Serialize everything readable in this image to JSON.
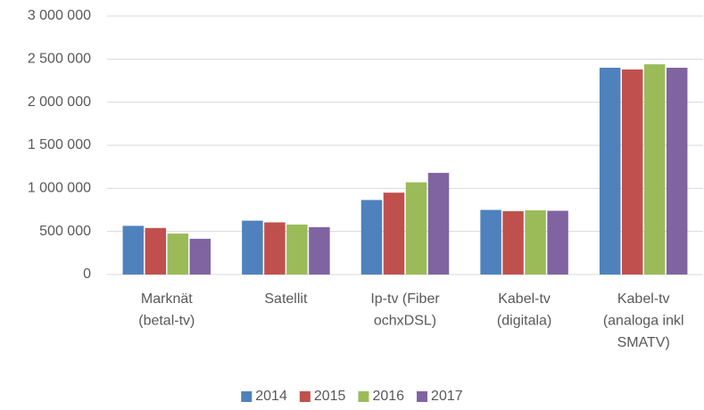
{
  "chart_data": {
    "type": "bar",
    "categories": [
      "Marknät\n(betal-tv)",
      "Satellit",
      "Ip-tv (Fiber\nochxDSL)",
      "Kabel-tv\n(digitala)",
      "Kabel-tv\n(analoga inkl\nSMATV)"
    ],
    "series": [
      {
        "name": "2014",
        "color": "#4f81bd",
        "values": [
          565000,
          625000,
          865000,
          750000,
          2400000
        ]
      },
      {
        "name": "2015",
        "color": "#c0504d",
        "values": [
          540000,
          605000,
          950000,
          735000,
          2380000
        ]
      },
      {
        "name": "2016",
        "color": "#9bbb59",
        "values": [
          475000,
          580000,
          1070000,
          745000,
          2440000
        ]
      },
      {
        "name": "2017",
        "color": "#8064a2",
        "values": [
          415000,
          550000,
          1180000,
          740000,
          2400000
        ]
      }
    ],
    "ylim": [
      0,
      3000000
    ],
    "yticks": [
      0,
      {
        "value": 500000,
        "label": "500 000"
      },
      {
        "value": 1000000,
        "label": "1 000 000"
      },
      {
        "value": 1500000,
        "label": "1 500 000"
      },
      {
        "value": 2000000,
        "label": "2 000 000"
      },
      {
        "value": 2500000,
        "label": "2 500 000"
      },
      {
        "value": 3000000,
        "label": "3 000 000"
      }
    ],
    "grid": true,
    "legend": "bottom"
  }
}
